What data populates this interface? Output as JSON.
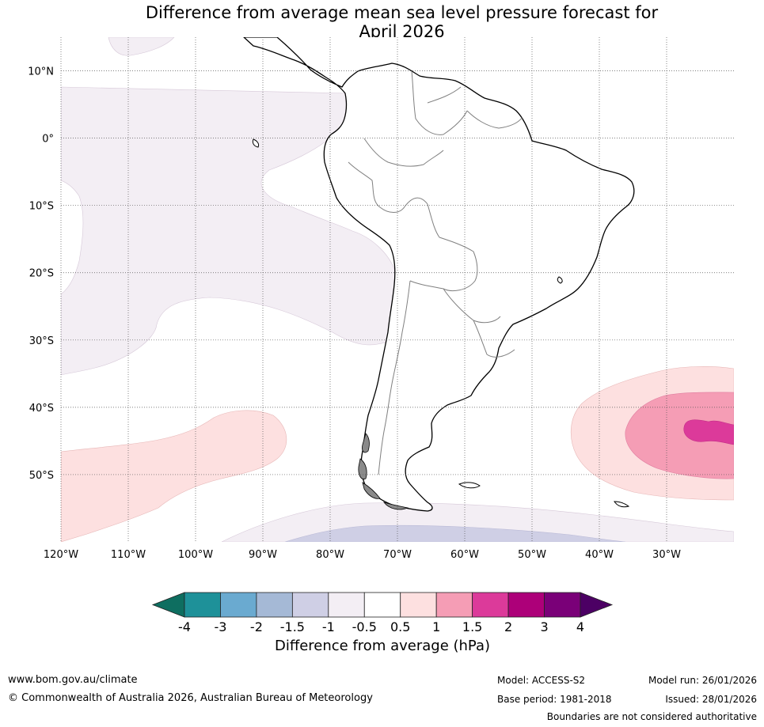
{
  "title": {
    "line1": "Difference from average mean sea level pressure forecast for",
    "line2": "April 2026"
  },
  "map": {
    "region": "South America",
    "lat_labels": [
      "10°N",
      "0°",
      "10°S",
      "20°S",
      "30°S",
      "40°S",
      "50°S"
    ],
    "lat_values": [
      10,
      0,
      -10,
      -20,
      -30,
      -40,
      -50
    ],
    "lon_labels": [
      "120°W",
      "110°W",
      "100°W",
      "90°W",
      "80°W",
      "70°W",
      "60°W",
      "50°W",
      "40°W",
      "30°W"
    ],
    "lon_values": [
      -120,
      -110,
      -100,
      -90,
      -80,
      -70,
      -60,
      -50,
      -40,
      -30
    ],
    "extent": {
      "lon_min": -120,
      "lon_max": -20,
      "lat_min": -60,
      "lat_max": 15
    }
  },
  "colorbar": {
    "title": "Difference from average (hPa)",
    "tick_labels": [
      "-4",
      "-3",
      "-2",
      "-1.5",
      "-1",
      "-0.5",
      "0.5",
      "1",
      "1.5",
      "2",
      "3",
      "4"
    ],
    "bins": [
      {
        "range": "-4 to -3",
        "color": "#1e9199"
      },
      {
        "range": "-3 to -2",
        "color": "#6aaad0"
      },
      {
        "range": "-2 to -1.5",
        "color": "#a5b9d6"
      },
      {
        "range": "-1.5 to -1",
        "color": "#cfcfe5"
      },
      {
        "range": "-1 to -0.5",
        "color": "#f3eef4"
      },
      {
        "range": "-0.5 to 0.5",
        "color": "#ffffff"
      },
      {
        "range": "0.5 to 1",
        "color": "#fde0e0"
      },
      {
        "range": "1 to 1.5",
        "color": "#f59db5"
      },
      {
        "range": "1.5 to 2",
        "color": "#dc3a9a"
      },
      {
        "range": "2 to 3",
        "color": "#ad0079"
      },
      {
        "range": "3 to 4",
        "color": "#7a0078"
      }
    ],
    "low_extend_color": "#0e6e60",
    "high_extend_color": "#4c0064"
  },
  "footer": {
    "website": "www.bom.gov.au/climate",
    "copyright": "© Commonwealth of Australia 2026, Australian Bureau of Meteorology",
    "model": "Model: ACCESS-S2",
    "base_period": "Base period: 1981-2018",
    "model_run": "Model run: 26/01/2026",
    "issued": "Issued: 28/01/2026",
    "disclaimer": "Boundaries are not considered authoritative"
  }
}
